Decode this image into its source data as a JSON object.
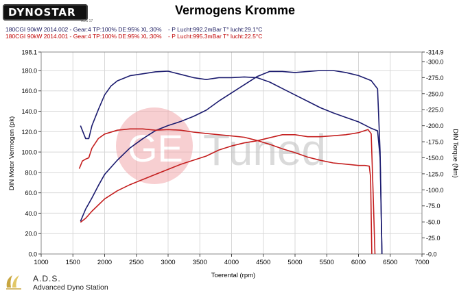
{
  "header": {
    "logo_text": "DYNOSTAR",
    "logo_sub": "ADS 17",
    "title": "Vermogens Kromme",
    "run1": "180CGI 90kW 2014.002 - Gear:4 TP:100% DE:95% XL:30%    - P Lucht:992.2mBar T° lucht:29.1°C",
    "run2": "180CGI 90kW 2014.001 - Gear:4 TP:100% DE:95% XL:30%    - P Lucht:995.3mBar T° lucht:22.5°C"
  },
  "watermark": {
    "text_ge": "GE",
    "text_tuned": "Tuned"
  },
  "footer": {
    "name": "A.D.S.",
    "subtitle": "Advanced Dyno Station"
  },
  "colors": {
    "run1": "#1a1a6e",
    "run2": "#c41e1e",
    "grid": "#d8d8d8"
  },
  "chart_data": {
    "type": "line",
    "title": "Vermogens Kromme",
    "xlabel": "Toerental (rpm)",
    "ylabel_left": "DIN Motor Vermogen (pk)",
    "ylabel_right": "DIN Torque (Nm)",
    "xlim": [
      1000,
      7000
    ],
    "ylim_left": [
      0,
      198.1
    ],
    "ylim_right": [
      0,
      314.9
    ],
    "x_ticks": [
      1000,
      1500,
      2000,
      2500,
      3000,
      3500,
      4000,
      4500,
      5000,
      5500,
      6000,
      6500,
      7000
    ],
    "y_left_ticks": [
      "0.0",
      "20.0",
      "40.0",
      "60.0",
      "80.0",
      "100.0",
      "120.0",
      "140.0",
      "160.0",
      "180.0",
      "198.1"
    ],
    "y_left_tick_values": [
      0,
      20,
      40,
      60,
      80,
      100,
      120,
      140,
      160,
      180,
      198.1
    ],
    "y_right_ticks": [
      "-0.0",
      "-25.0",
      "-50.0",
      "-75.0",
      "-100.0",
      "-125.0",
      "-150.0",
      "-175.0",
      "-200.0",
      "-225.0",
      "-250.0",
      "-275.0",
      "-300.0",
      "-314.9"
    ],
    "y_right_tick_values": [
      0,
      25,
      50,
      75,
      100,
      125,
      150,
      175,
      200,
      225,
      250,
      275,
      300,
      314.9
    ],
    "grid": true,
    "series": [
      {
        "run": "180CGI 90kW 2014.002",
        "quantity": "power",
        "axis": "left",
        "x": [
          1620,
          1700,
          1800,
          1900,
          2000,
          2200,
          2400,
          2600,
          2800,
          3000,
          3200,
          3400,
          3600,
          3800,
          4000,
          4200,
          4400,
          4600,
          4800,
          5000,
          5200,
          5400,
          5600,
          5800,
          6000,
          6200,
          6300,
          6340,
          6370
        ],
        "y": [
          32,
          44,
          55,
          67,
          78,
          92,
          104,
          113,
          121,
          126,
          130,
          135,
          141,
          150,
          158,
          166,
          174,
          179,
          179,
          178,
          179,
          180,
          180,
          178,
          175,
          170,
          162,
          100,
          0
        ]
      },
      {
        "run": "180CGI 90kW 2014.002",
        "quantity": "torque",
        "axis": "right",
        "x": [
          1620,
          1700,
          1750,
          1800,
          1900,
          2000,
          2100,
          2200,
          2400,
          2600,
          2800,
          3000,
          3200,
          3400,
          3600,
          3800,
          4000,
          4200,
          4400,
          4600,
          4800,
          5000,
          5200,
          5400,
          5600,
          5800,
          6000,
          6100,
          6200,
          6300,
          6340,
          6370
        ],
        "y": [
          200,
          180,
          180,
          200,
          225,
          248,
          262,
          270,
          278,
          281,
          284,
          285,
          280,
          275,
          272,
          275,
          275,
          276,
          275,
          268,
          258,
          248,
          238,
          228,
          220,
          213,
          206,
          201,
          196,
          192,
          150,
          0
        ]
      },
      {
        "run": "180CGI 90kW 2014.001",
        "quantity": "power",
        "axis": "left",
        "x": [
          1620,
          1700,
          1800,
          2000,
          2200,
          2400,
          2600,
          2800,
          3000,
          3200,
          3400,
          3600,
          3800,
          4000,
          4200,
          4400,
          4600,
          4800,
          5000,
          5200,
          5400,
          5600,
          5800,
          6000,
          6150,
          6200,
          6230,
          6260
        ],
        "y": [
          31,
          35,
          42,
          54,
          62,
          68,
          73,
          78,
          83,
          88,
          92,
          96,
          102,
          106,
          109,
          111,
          114,
          117,
          117,
          115,
          115,
          116,
          117,
          119,
          122,
          118,
          60,
          0
        ]
      },
      {
        "run": "180CGI 90kW 2014.001",
        "quantity": "torque",
        "axis": "right",
        "x": [
          1600,
          1650,
          1700,
          1750,
          1800,
          1900,
          2000,
          2200,
          2400,
          2600,
          2800,
          3000,
          3200,
          3400,
          3600,
          3800,
          4000,
          4200,
          4400,
          4600,
          4800,
          5000,
          5200,
          5400,
          5600,
          5800,
          6000,
          6100,
          6170,
          6190,
          6210
        ],
        "y": [
          133,
          145,
          148,
          150,
          165,
          180,
          187,
          193,
          195,
          195,
          193,
          194,
          193,
          190,
          188,
          186,
          184,
          182,
          177,
          171,
          164,
          158,
          151,
          146,
          142,
          140,
          138,
          138,
          137,
          120,
          0
        ]
      }
    ]
  }
}
